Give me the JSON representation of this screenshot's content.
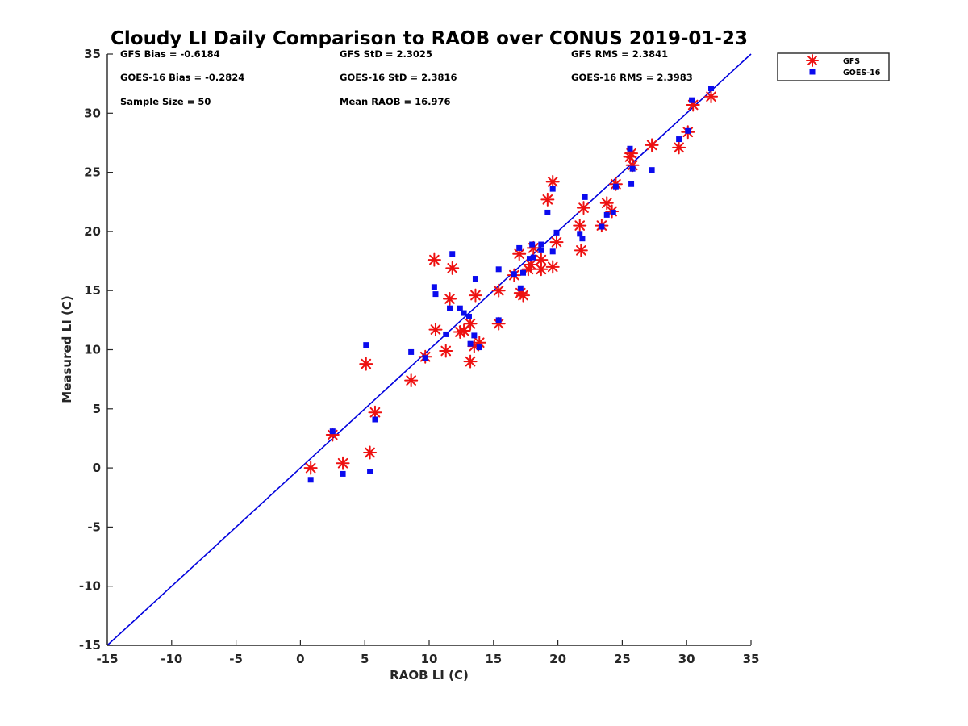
{
  "chart_data": {
    "type": "scatter",
    "title": "Cloudy LI Daily Comparison to RAOB over CONUS 2019-01-23",
    "xlabel": "RAOB LI (C)",
    "ylabel": "Measured LI (C)",
    "xlim": [
      -15,
      35
    ],
    "ylim": [
      -15,
      35
    ],
    "xticks": [
      "-15",
      "-10",
      "-5",
      "0",
      "5",
      "10",
      "15",
      "20",
      "25",
      "30",
      "35"
    ],
    "yticks": [
      "-15",
      "-10",
      "-5",
      "0",
      "5",
      "10",
      "15",
      "20",
      "25",
      "30",
      "35"
    ],
    "grid": false,
    "legend_position": "top-right",
    "reference_line": {
      "x": [
        -15,
        35
      ],
      "y": [
        -15,
        35
      ],
      "color": "#0000dd"
    },
    "stats": [
      [
        "GFS Bias = -0.6184",
        "GFS StD = 2.3025",
        "GFS RMS = 2.3841"
      ],
      [
        "GOES-16 Bias = -0.2824",
        "GOES-16 StD = 2.3816",
        "GOES-16 RMS = 2.3983"
      ],
      [
        "Sample Size = 50",
        "Mean RAOB = 16.976",
        ""
      ]
    ],
    "series": [
      {
        "name": "GFS",
        "marker": "asterisk",
        "color": "#ee1111",
        "points": [
          [
            0.8,
            0.0
          ],
          [
            2.5,
            2.8
          ],
          [
            3.3,
            0.4
          ],
          [
            5.1,
            8.8
          ],
          [
            5.4,
            1.3
          ],
          [
            5.8,
            4.7
          ],
          [
            8.6,
            7.4
          ],
          [
            9.7,
            9.4
          ],
          [
            10.4,
            17.6
          ],
          [
            10.5,
            11.7
          ],
          [
            11.3,
            9.9
          ],
          [
            11.6,
            14.3
          ],
          [
            11.8,
            16.9
          ],
          [
            12.4,
            11.5
          ],
          [
            12.7,
            11.6
          ],
          [
            13.2,
            12.2
          ],
          [
            13.2,
            9.0
          ],
          [
            13.5,
            10.3
          ],
          [
            13.6,
            14.6
          ],
          [
            13.9,
            10.6
          ],
          [
            15.4,
            15.0
          ],
          [
            15.4,
            12.2
          ],
          [
            16.6,
            16.3
          ],
          [
            17.0,
            18.1
          ],
          [
            17.1,
            14.8
          ],
          [
            17.3,
            14.6
          ],
          [
            17.7,
            16.8
          ],
          [
            17.9,
            17.2
          ],
          [
            18.1,
            18.6
          ],
          [
            18.7,
            17.6
          ],
          [
            18.7,
            16.8
          ],
          [
            19.2,
            22.7
          ],
          [
            19.6,
            24.2
          ],
          [
            19.6,
            17.0
          ],
          [
            19.9,
            19.1
          ],
          [
            21.7,
            20.5
          ],
          [
            21.8,
            18.4
          ],
          [
            22.0,
            22.0
          ],
          [
            23.4,
            20.5
          ],
          [
            23.8,
            22.4
          ],
          [
            24.2,
            21.7
          ],
          [
            24.5,
            24.0
          ],
          [
            25.6,
            26.3
          ],
          [
            25.7,
            26.6
          ],
          [
            25.8,
            25.6
          ],
          [
            27.3,
            27.3
          ],
          [
            29.4,
            27.1
          ],
          [
            30.1,
            28.4
          ],
          [
            30.5,
            30.7
          ],
          [
            31.9,
            31.4
          ]
        ]
      },
      {
        "name": "GOES-16",
        "marker": "square",
        "color": "#0b0bee",
        "points": [
          [
            0.8,
            -1.0
          ],
          [
            2.5,
            3.1
          ],
          [
            3.3,
            -0.5
          ],
          [
            5.1,
            10.4
          ],
          [
            5.4,
            -0.3
          ],
          [
            5.8,
            4.1
          ],
          [
            8.6,
            9.8
          ],
          [
            9.7,
            9.3
          ],
          [
            10.4,
            15.3
          ],
          [
            10.5,
            14.7
          ],
          [
            11.3,
            11.3
          ],
          [
            11.6,
            13.5
          ],
          [
            11.8,
            18.1
          ],
          [
            12.4,
            13.5
          ],
          [
            12.7,
            13.1
          ],
          [
            13.1,
            12.8
          ],
          [
            13.2,
            10.5
          ],
          [
            13.5,
            11.2
          ],
          [
            13.6,
            16.0
          ],
          [
            13.9,
            10.2
          ],
          [
            15.4,
            16.8
          ],
          [
            15.4,
            12.5
          ],
          [
            16.6,
            16.4
          ],
          [
            17.0,
            18.6
          ],
          [
            17.1,
            15.2
          ],
          [
            17.3,
            16.5
          ],
          [
            17.8,
            17.7
          ],
          [
            18.0,
            18.9
          ],
          [
            18.1,
            17.8
          ],
          [
            18.7,
            18.4
          ],
          [
            18.7,
            18.9
          ],
          [
            19.2,
            21.6
          ],
          [
            19.6,
            23.6
          ],
          [
            19.6,
            18.3
          ],
          [
            19.9,
            19.9
          ],
          [
            21.7,
            19.8
          ],
          [
            21.9,
            19.4
          ],
          [
            22.1,
            22.9
          ],
          [
            23.4,
            20.4
          ],
          [
            23.8,
            21.4
          ],
          [
            24.3,
            21.6
          ],
          [
            24.5,
            23.8
          ],
          [
            25.6,
            27.0
          ],
          [
            25.7,
            24.0
          ],
          [
            25.8,
            25.3
          ],
          [
            27.3,
            25.2
          ],
          [
            29.4,
            27.8
          ],
          [
            30.1,
            28.5
          ],
          [
            30.4,
            31.1
          ],
          [
            31.9,
            32.1
          ]
        ]
      }
    ]
  }
}
